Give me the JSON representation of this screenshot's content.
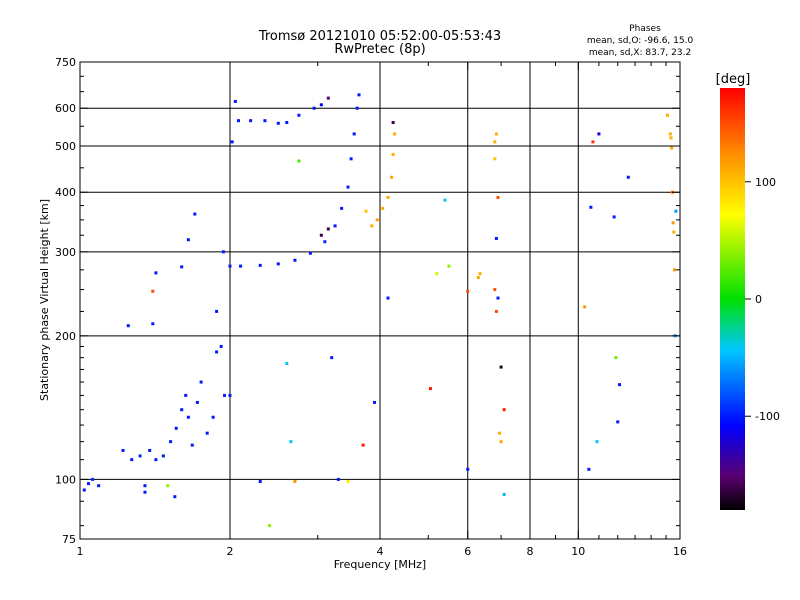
{
  "header": {
    "title": "Tromsø 20121010 05:52:00-05:53:43",
    "subtitle": "RwPretec (8p)",
    "stats_heading": "Phases",
    "stats_o": "mean, sd,O: -96.6, 15.0",
    "stats_x": "mean, sd,X: 83.7, 23.2"
  },
  "colorbar": {
    "label": "[deg]",
    "range": [
      -180,
      180
    ],
    "ticks": [
      {
        "value": 100,
        "label": "100"
      },
      {
        "value": 0,
        "label": "0"
      },
      {
        "value": -100,
        "label": "-100"
      }
    ]
  },
  "chart_data": {
    "type": "scatter",
    "xlabel": "Frequency [MHz]",
    "ylabel": "Stationary phase Virtual Height [km]",
    "x_scale": "log",
    "y_scale": "log",
    "xlim": [
      1,
      16
    ],
    "ylim": [
      75,
      750
    ],
    "x_ticks": [
      {
        "value": 1,
        "label": "1"
      },
      {
        "value": 2,
        "label": "2"
      },
      {
        "value": 4,
        "label": "4"
      },
      {
        "value": 6,
        "label": "6"
      },
      {
        "value": 8,
        "label": "8"
      },
      {
        "value": 10,
        "label": "10"
      },
      {
        "value": 16,
        "label": "16"
      }
    ],
    "y_ticks": [
      {
        "value": 75,
        "label": "75"
      },
      {
        "value": 100,
        "label": "100"
      },
      {
        "value": 200,
        "label": "200"
      },
      {
        "value": 300,
        "label": "300"
      },
      {
        "value": 400,
        "label": "400"
      },
      {
        "value": 500,
        "label": "500"
      },
      {
        "value": 600,
        "label": "600"
      },
      {
        "value": 750,
        "label": "750"
      }
    ],
    "grid_x": [
      2,
      4,
      6,
      8,
      10
    ],
    "grid_y": [
      100,
      200,
      300,
      400,
      500,
      600
    ],
    "series": [
      {
        "points": [
          [
            1.02,
            95,
            -100
          ],
          [
            1.04,
            98,
            -100
          ],
          [
            1.06,
            100,
            -95
          ],
          [
            1.09,
            97,
            -100
          ],
          [
            1.22,
            115,
            -100
          ],
          [
            1.27,
            110,
            -100
          ],
          [
            1.32,
            112,
            -95
          ],
          [
            1.38,
            115,
            -100
          ],
          [
            1.42,
            110,
            -100
          ],
          [
            1.47,
            112,
            -100
          ],
          [
            1.52,
            120,
            -100
          ],
          [
            1.56,
            128,
            -100
          ],
          [
            1.6,
            140,
            -100
          ],
          [
            1.63,
            150,
            -100
          ],
          [
            1.65,
            135,
            -100
          ],
          [
            1.68,
            118,
            -100
          ],
          [
            1.72,
            145,
            -100
          ],
          [
            1.75,
            160,
            -100
          ],
          [
            1.8,
            125,
            -100
          ],
          [
            1.85,
            135,
            -100
          ],
          [
            1.88,
            185,
            -100
          ],
          [
            1.92,
            190,
            -100
          ],
          [
            1.95,
            150,
            -100
          ],
          [
            1.35,
            97,
            -100
          ],
          [
            1.25,
            210,
            -100
          ],
          [
            1.4,
            212,
            -100
          ],
          [
            1.42,
            271,
            -100
          ],
          [
            1.6,
            279,
            -100
          ],
          [
            1.65,
            318,
            -100
          ],
          [
            1.7,
            360,
            -100
          ],
          [
            1.88,
            225,
            -100
          ],
          [
            1.94,
            300,
            -100
          ],
          [
            2.0,
            280,
            -100
          ],
          [
            2.1,
            280,
            -100
          ],
          [
            2.3,
            281,
            -100
          ],
          [
            2.5,
            283,
            -100
          ],
          [
            2.7,
            288,
            -100
          ],
          [
            2.9,
            298,
            -100
          ],
          [
            3.1,
            315,
            -95
          ],
          [
            3.25,
            340,
            -100
          ],
          [
            3.35,
            370,
            -100
          ],
          [
            3.45,
            410,
            -100
          ],
          [
            3.5,
            470,
            -100
          ],
          [
            3.55,
            530,
            -100
          ],
          [
            3.6,
            600,
            -100
          ],
          [
            3.63,
            640,
            -100
          ],
          [
            3.05,
            325,
            -160
          ],
          [
            3.15,
            335,
            -160
          ],
          [
            2.02,
            510,
            -100
          ],
          [
            2.05,
            620,
            -100
          ],
          [
            2.08,
            565,
            -100
          ],
          [
            2.2,
            565,
            -100
          ],
          [
            2.35,
            565,
            -100
          ],
          [
            2.5,
            558,
            -100
          ],
          [
            2.6,
            560,
            -100
          ],
          [
            2.75,
            580,
            -100
          ],
          [
            2.95,
            600,
            -100
          ],
          [
            3.05,
            610,
            -110
          ],
          [
            3.15,
            630,
            -150
          ],
          [
            3.85,
            340,
            110
          ],
          [
            3.95,
            350,
            115
          ],
          [
            4.05,
            370,
            110
          ],
          [
            4.15,
            390,
            110
          ],
          [
            4.22,
            430,
            115
          ],
          [
            4.25,
            480,
            110
          ],
          [
            4.28,
            530,
            110
          ],
          [
            3.75,
            365,
            100
          ],
          [
            4.25,
            560,
            -160
          ],
          [
            4.15,
            240,
            -100
          ],
          [
            5.4,
            385,
            -40
          ],
          [
            5.5,
            280,
            40
          ],
          [
            5.2,
            270,
            60
          ],
          [
            6.0,
            248,
            150
          ],
          [
            6.3,
            265,
            110
          ],
          [
            6.35,
            270,
            110
          ],
          [
            6.8,
            250,
            150
          ],
          [
            6.85,
            225,
            150
          ],
          [
            6.9,
            240,
            -100
          ],
          [
            7.0,
            172,
            -170
          ],
          [
            6.8,
            470,
            100
          ],
          [
            6.8,
            510,
            110
          ],
          [
            6.85,
            530,
            110
          ],
          [
            6.9,
            390,
            150
          ],
          [
            6.85,
            320,
            -100
          ],
          [
            7.1,
            140,
            170
          ],
          [
            7.0,
            120,
            110
          ],
          [
            6.95,
            125,
            110
          ],
          [
            7.1,
            93,
            -50
          ],
          [
            6.0,
            105,
            -100
          ],
          [
            5.05,
            155,
            170
          ],
          [
            3.9,
            145,
            -100
          ],
          [
            3.7,
            118,
            170
          ],
          [
            3.2,
            180,
            -100
          ],
          [
            2.6,
            175,
            -40
          ],
          [
            2.65,
            120,
            -40
          ],
          [
            2.7,
            99,
            120
          ],
          [
            2.4,
            80,
            40
          ],
          [
            2.3,
            99,
            -100
          ],
          [
            2.0,
            150,
            -100
          ],
          [
            1.5,
            97,
            40
          ],
          [
            1.55,
            92,
            -100
          ],
          [
            1.35,
            94,
            -100
          ],
          [
            1.4,
            248,
            150
          ],
          [
            2.75,
            465,
            20
          ],
          [
            3.3,
            100,
            -100
          ],
          [
            3.45,
            99,
            80
          ],
          [
            10.3,
            230,
            120
          ],
          [
            10.5,
            105,
            -100
          ],
          [
            10.9,
            120,
            -40
          ],
          [
            11.0,
            530,
            -120
          ],
          [
            10.7,
            510,
            160
          ],
          [
            10.6,
            372,
            -100
          ],
          [
            11.9,
            180,
            30
          ],
          [
            12.1,
            158,
            -100
          ],
          [
            12.0,
            132,
            -100
          ],
          [
            12.6,
            430,
            -100
          ],
          [
            11.8,
            355,
            -100
          ],
          [
            15.3,
            530,
            110
          ],
          [
            15.35,
            520,
            110
          ],
          [
            15.4,
            495,
            110
          ],
          [
            15.45,
            400,
            140
          ],
          [
            15.5,
            345,
            120
          ],
          [
            15.55,
            330,
            110
          ],
          [
            15.6,
            275,
            120
          ],
          [
            15.65,
            200,
            -60
          ],
          [
            15.7,
            365,
            -60
          ],
          [
            15.1,
            580,
            110
          ]
        ]
      }
    ]
  }
}
